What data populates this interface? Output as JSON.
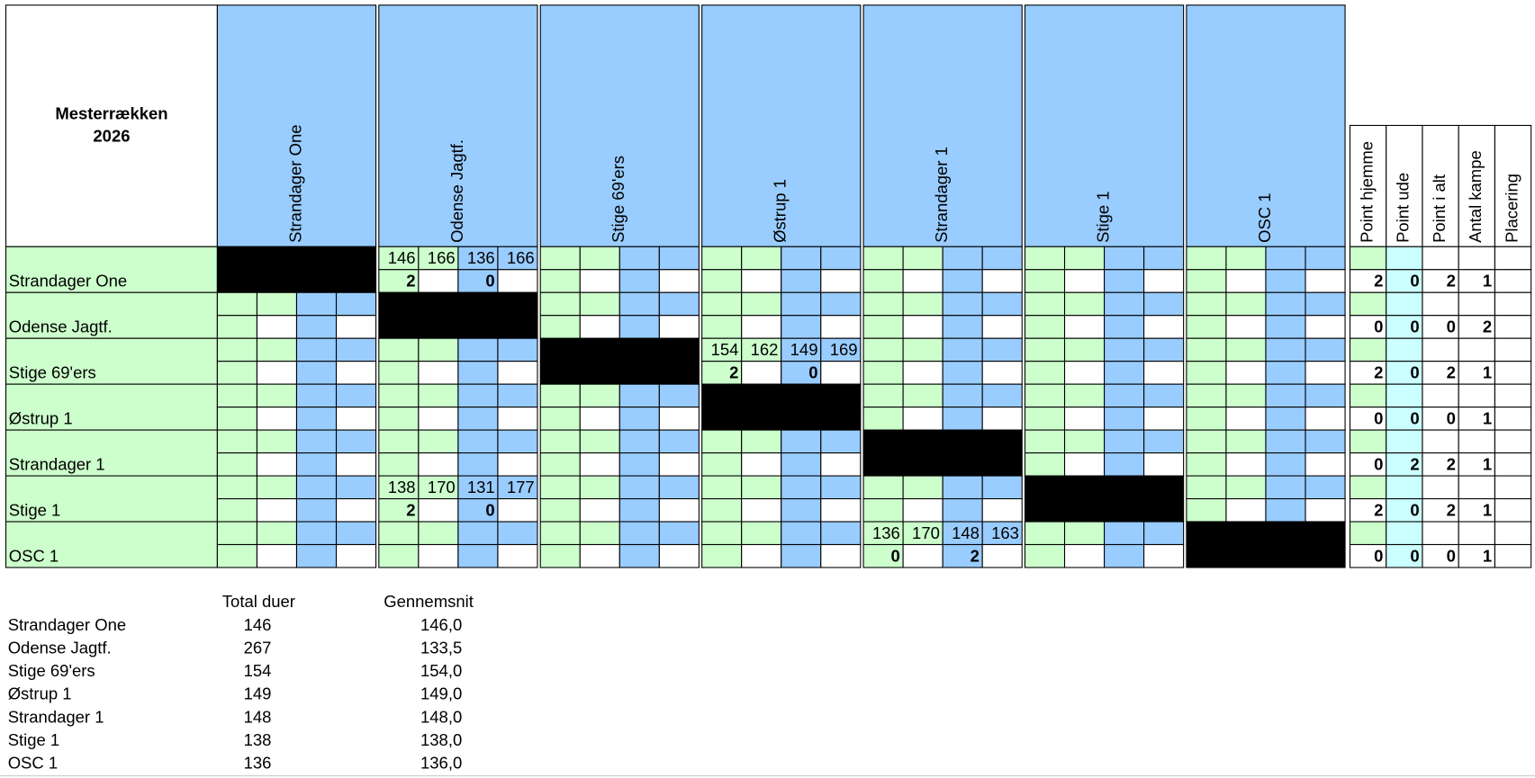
{
  "title_lines": [
    "Mesterrækken",
    "2026"
  ],
  "teams": [
    "Strandager One",
    "Odense Jagtf.",
    "Stige 69'ers",
    "Østrup 1",
    "Strandager 1",
    "Stige 1",
    "OSC 1"
  ],
  "stat_headers": [
    "Point hjemme",
    "Point ude",
    "Point i alt",
    "Antal kampe",
    "Placering"
  ],
  "matches": [
    {
      "row": 0,
      "col": 1,
      "scores": [
        146,
        166,
        136,
        166
      ],
      "points": [
        2,
        0
      ]
    },
    {
      "row": 2,
      "col": 3,
      "scores": [
        154,
        162,
        149,
        169
      ],
      "points": [
        2,
        0
      ]
    },
    {
      "row": 5,
      "col": 1,
      "scores": [
        138,
        170,
        131,
        177
      ],
      "points": [
        2,
        0
      ]
    },
    {
      "row": 6,
      "col": 4,
      "scores": [
        136,
        170,
        148,
        163
      ],
      "points": [
        0,
        2
      ]
    }
  ],
  "stats": [
    [
      2,
      0,
      2,
      1
    ],
    [
      0,
      0,
      0,
      2
    ],
    [
      2,
      0,
      2,
      1
    ],
    [
      0,
      0,
      0,
      1
    ],
    [
      0,
      2,
      2,
      1
    ],
    [
      2,
      0,
      2,
      1
    ],
    [
      0,
      0,
      0,
      1
    ]
  ],
  "summary": {
    "headers": [
      "Total duer",
      "Gennemsnit"
    ],
    "rows": [
      {
        "name": "Strandager One",
        "total": 146,
        "average": "146,0"
      },
      {
        "name": "Odense Jagtf.",
        "total": 267,
        "average": "133,5"
      },
      {
        "name": "Stige 69'ers",
        "total": 154,
        "average": "154,0"
      },
      {
        "name": "Østrup 1",
        "total": 149,
        "average": "149,0"
      },
      {
        "name": "Strandager 1",
        "total": 148,
        "average": "148,0"
      },
      {
        "name": "Stige 1",
        "total": 138,
        "average": "138,0"
      },
      {
        "name": "OSC 1",
        "total": 136,
        "average": "136,0"
      }
    ]
  }
}
